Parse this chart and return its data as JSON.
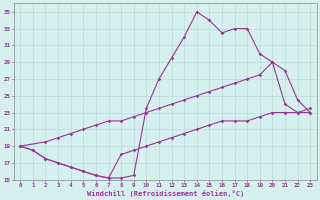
{
  "xlabel": "Windchill (Refroidissement éolien,°C)",
  "xlim": [
    -0.5,
    23.5
  ],
  "ylim": [
    15,
    36
  ],
  "xticks": [
    0,
    1,
    2,
    3,
    4,
    5,
    6,
    7,
    8,
    9,
    10,
    11,
    12,
    13,
    14,
    15,
    16,
    17,
    18,
    19,
    20,
    21,
    22,
    23
  ],
  "yticks": [
    15,
    17,
    19,
    21,
    23,
    25,
    27,
    29,
    31,
    33,
    35
  ],
  "background_color": "#d6f0ee",
  "line_color": "#993399",
  "grid_color": "#b8ddd8",
  "curve1_x": [
    0,
    1,
    2,
    3,
    4,
    5,
    6,
    7,
    8,
    9,
    10,
    11,
    12,
    13,
    14,
    15,
    16,
    17,
    18,
    19,
    20,
    21,
    22,
    23
  ],
  "curve1_y": [
    19,
    18.5,
    17.5,
    17.0,
    16.5,
    16.0,
    15.5,
    15.2,
    18.0,
    18.5,
    19.0,
    19.5,
    20.0,
    20.5,
    21.0,
    21.5,
    22.0,
    22.0,
    22.0,
    22.5,
    23.0,
    23.0,
    23.0,
    23.5
  ],
  "curve2_x": [
    0,
    1,
    2,
    3,
    4,
    5,
    6,
    7,
    8,
    9,
    10,
    11,
    12,
    13,
    14,
    15,
    16,
    17,
    18,
    19,
    20,
    21,
    22,
    23
  ],
  "curve2_y": [
    19,
    18.5,
    17.5,
    17.0,
    16.5,
    16.0,
    15.5,
    15.2,
    15.2,
    15.5,
    23.5,
    27.0,
    29.5,
    32.0,
    35.0,
    34.0,
    32.5,
    33.0,
    33.0,
    30.0,
    29.0,
    24.0,
    23.0,
    23.0
  ],
  "curve3_x": [
    0,
    2,
    3,
    4,
    5,
    6,
    7,
    8,
    9,
    10,
    11,
    12,
    13,
    14,
    15,
    16,
    17,
    18,
    19,
    20,
    21,
    22,
    23
  ],
  "curve3_y": [
    19,
    19.5,
    20.0,
    20.5,
    21.0,
    21.5,
    22.0,
    22.0,
    22.5,
    23.0,
    23.5,
    24.0,
    24.5,
    25.0,
    25.5,
    26.0,
    26.5,
    27.0,
    27.5,
    29.0,
    28.0,
    24.5,
    23.0
  ]
}
